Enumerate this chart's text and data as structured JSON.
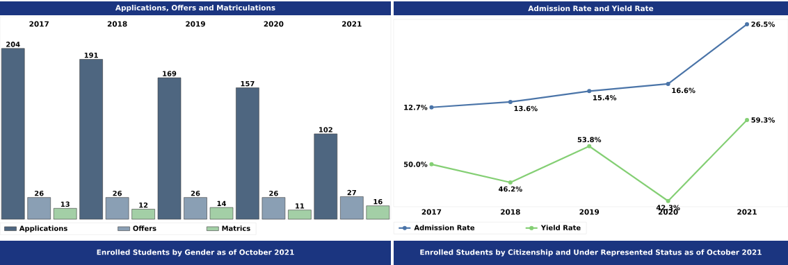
{
  "chart_data": [
    {
      "type": "bar",
      "title": "Applications, Offers and Matriculations",
      "categories": [
        "2017",
        "2018",
        "2019",
        "2020",
        "2021"
      ],
      "series": [
        {
          "name": "Applications",
          "color": "#4e6680",
          "values": [
            204,
            191,
            169,
            157,
            102
          ]
        },
        {
          "name": "Offers",
          "color": "#8a9fb4",
          "values": [
            26,
            26,
            26,
            26,
            27
          ]
        },
        {
          "name": "Matrics",
          "color": "#a3cfa6",
          "values": [
            13,
            12,
            14,
            11,
            16
          ]
        }
      ],
      "ylim": [
        0,
        242
      ],
      "data_labels": true,
      "legend": "bottom",
      "tick_labels": "x"
    },
    {
      "type": "line",
      "title": "Admission Rate and Yield Rate",
      "categories": [
        "2017",
        "2018",
        "2019",
        "2020",
        "2021"
      ],
      "series": [
        {
          "name": "Admission Rate",
          "color": "#4a74a8",
          "values": [
            12.7,
            13.6,
            15.4,
            16.6,
            26.5
          ],
          "value_labels": [
            "12.7%",
            "13.6%",
            "15.4%",
            "16.6%",
            "26.5%"
          ]
        },
        {
          "name": "Yield Rate",
          "color": "#84cf74",
          "axis": "y2",
          "values": [
            50.0,
            46.2,
            53.8,
            42.3,
            59.3
          ],
          "value_labels": [
            "50.0%",
            "46.2%",
            "53.8%",
            "42.3%",
            "59.3%"
          ]
        }
      ],
      "ylim": [
        -3.8,
        27.3
      ],
      "y2lim": [
        41.1,
        80.4
      ],
      "marker": "circle",
      "legend": "bottom",
      "tick_labels": "x"
    },
    {
      "type": "other",
      "title": "Enrolled Students by Gender as of October 2021"
    },
    {
      "type": "other",
      "title": "Enrolled Students by Citizenship and Under Represented Status as of October 2021"
    }
  ]
}
